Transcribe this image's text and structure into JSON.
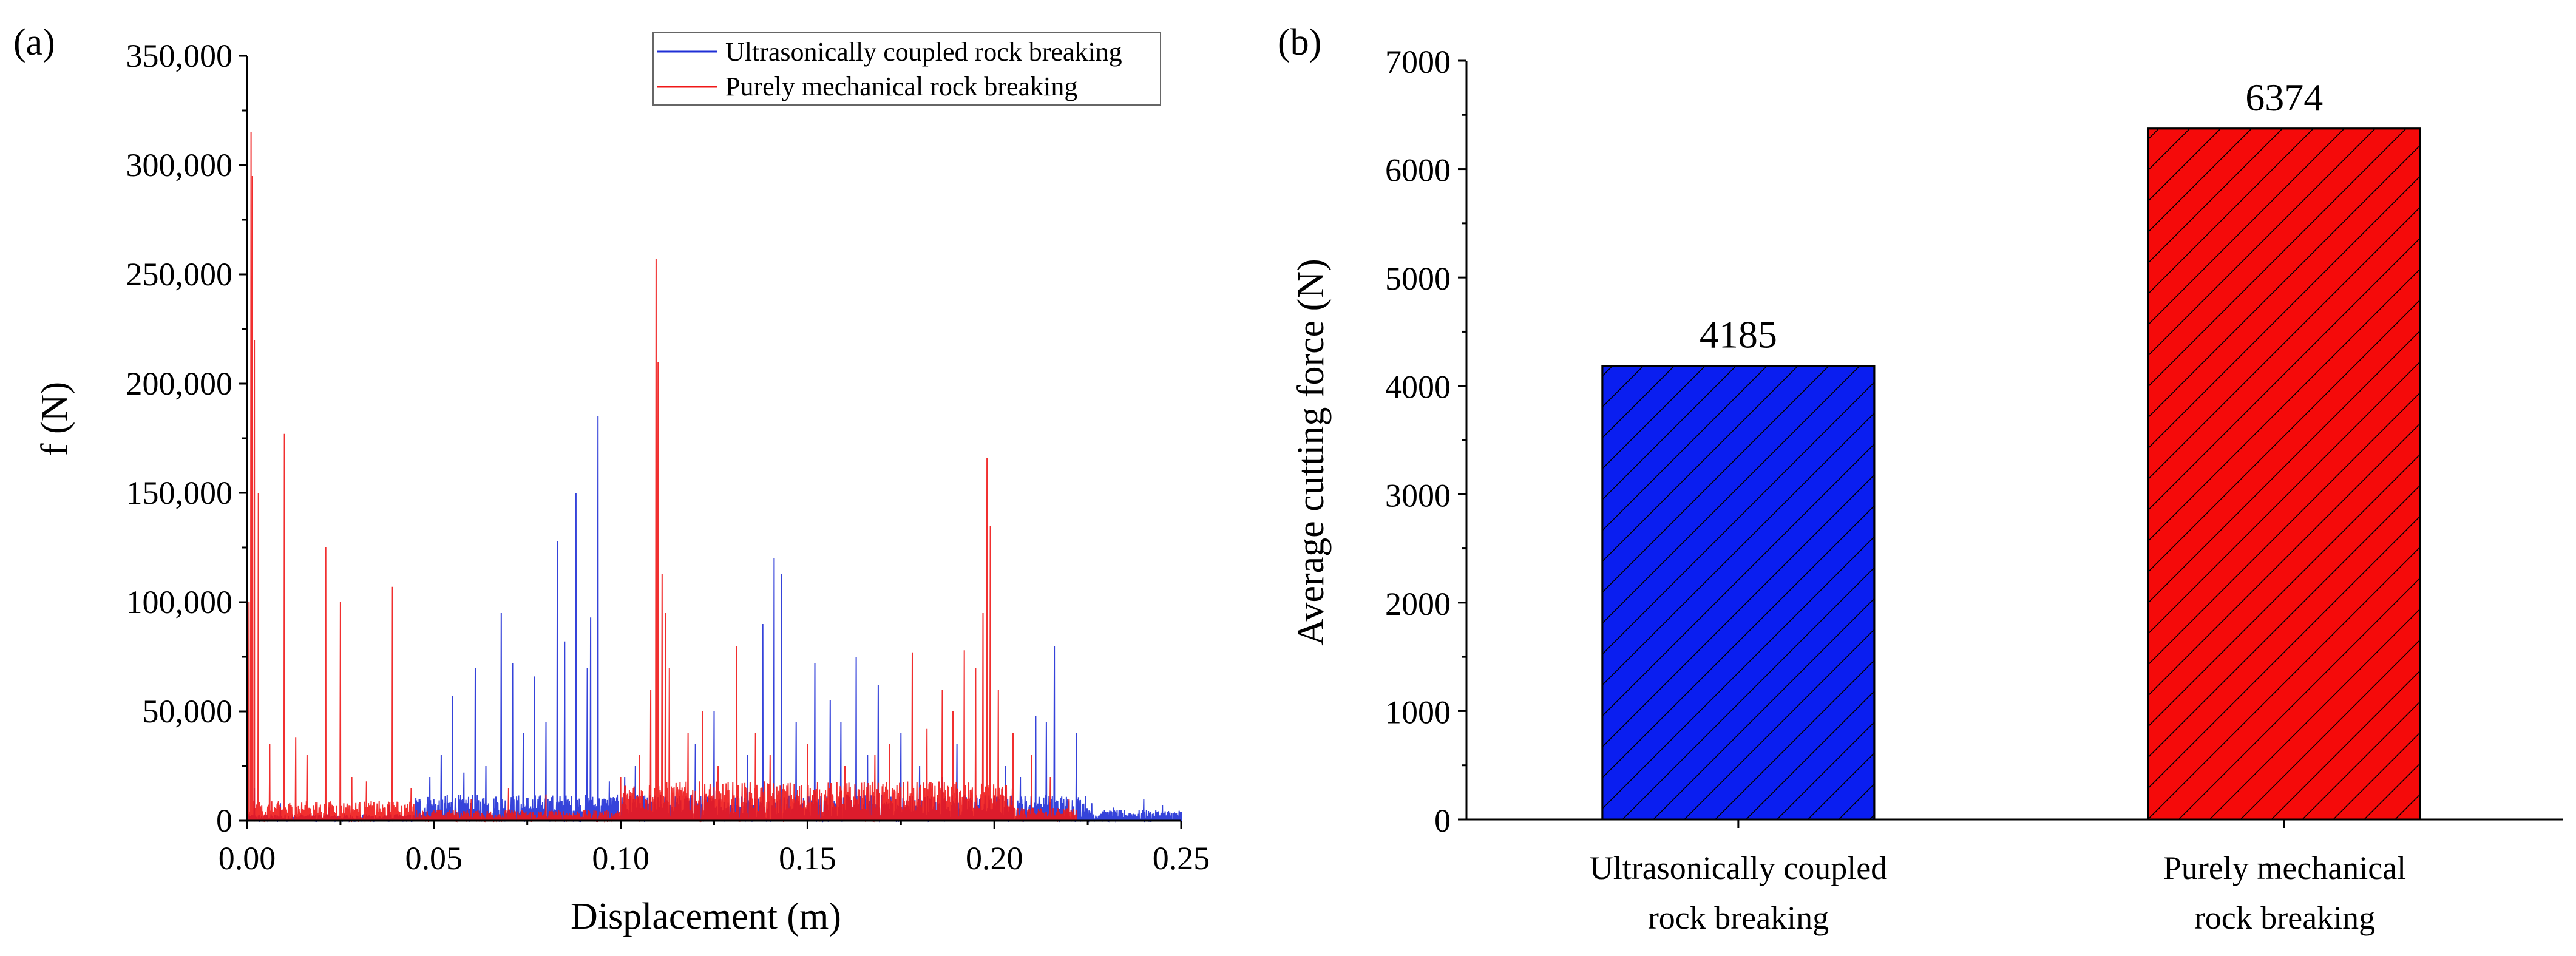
{
  "chart_data": [
    {
      "panel_label": "(a)",
      "type": "line",
      "title": "",
      "xlabel": "Displacement (m)",
      "ylabel": "f (N)",
      "xlim": [
        0.0,
        0.25
      ],
      "ylim": [
        0,
        350000
      ],
      "xticks": [
        0.0,
        0.05,
        0.1,
        0.15,
        0.2,
        0.25
      ],
      "xtick_labels": [
        "0.00",
        "0.05",
        "0.10",
        "0.15",
        "0.20",
        "0.25"
      ],
      "yticks": [
        0,
        50000,
        100000,
        150000,
        200000,
        250000,
        300000,
        350000
      ],
      "ytick_labels": [
        "0",
        "50,000",
        "100,000",
        "150,000",
        "200,000",
        "250,000",
        "300,000",
        "350,000"
      ],
      "legend_position": "top-right",
      "series": [
        {
          "name": "Ultrasonically coupled rock breaking",
          "color": "#1f2fd6",
          "peaks": [
            [
              0.002,
              15000
            ],
            [
              0.009,
              8000
            ],
            [
              0.022,
              6000
            ],
            [
              0.038,
              7000
            ],
            [
              0.049,
              20000
            ],
            [
              0.052,
              30000
            ],
            [
              0.055,
              57000
            ],
            [
              0.058,
              22000
            ],
            [
              0.061,
              70000
            ],
            [
              0.064,
              25000
            ],
            [
              0.068,
              95000
            ],
            [
              0.071,
              72000
            ],
            [
              0.074,
              40000
            ],
            [
              0.077,
              66000
            ],
            [
              0.08,
              45000
            ],
            [
              0.083,
              128000
            ],
            [
              0.085,
              82000
            ],
            [
              0.088,
              150000
            ],
            [
              0.091,
              70000
            ],
            [
              0.092,
              93000
            ],
            [
              0.094,
              185000
            ],
            [
              0.097,
              18000
            ],
            [
              0.101,
              20000
            ],
            [
              0.104,
              25000
            ],
            [
              0.12,
              35000
            ],
            [
              0.125,
              50000
            ],
            [
              0.134,
              30000
            ],
            [
              0.138,
              90000
            ],
            [
              0.141,
              120000
            ],
            [
              0.143,
              113000
            ],
            [
              0.147,
              45000
            ],
            [
              0.152,
              72000
            ],
            [
              0.156,
              55000
            ],
            [
              0.159,
              45000
            ],
            [
              0.163,
              75000
            ],
            [
              0.166,
              30000
            ],
            [
              0.169,
              62000
            ],
            [
              0.175,
              40000
            ],
            [
              0.18,
              25000
            ],
            [
              0.186,
              20000
            ],
            [
              0.19,
              35000
            ],
            [
              0.203,
              25000
            ],
            [
              0.207,
              20000
            ],
            [
              0.211,
              48000
            ],
            [
              0.214,
              45000
            ],
            [
              0.216,
              80000
            ],
            [
              0.222,
              40000
            ],
            [
              0.226,
              8000
            ],
            [
              0.232,
              6000
            ],
            [
              0.24,
              10000
            ],
            [
              0.245,
              7000
            ]
          ]
        },
        {
          "name": "Purely mechanical rock breaking",
          "color": "#f01818",
          "peaks": [
            [
              0.0005,
              100000
            ],
            [
              0.001,
              315000
            ],
            [
              0.0015,
              295000
            ],
            [
              0.002,
              220000
            ],
            [
              0.003,
              150000
            ],
            [
              0.006,
              35000
            ],
            [
              0.01,
              177000
            ],
            [
              0.013,
              38000
            ],
            [
              0.016,
              30000
            ],
            [
              0.021,
              125000
            ],
            [
              0.025,
              100000
            ],
            [
              0.028,
              20000
            ],
            [
              0.032,
              18000
            ],
            [
              0.039,
              107000
            ],
            [
              0.044,
              15000
            ],
            [
              0.06,
              10000
            ],
            [
              0.07,
              15000
            ],
            [
              0.08,
              12000
            ],
            [
              0.1,
              20000
            ],
            [
              0.105,
              30000
            ],
            [
              0.108,
              60000
            ],
            [
              0.1095,
              257000
            ],
            [
              0.11,
              210000
            ],
            [
              0.111,
              113000
            ],
            [
              0.112,
              95000
            ],
            [
              0.113,
              70000
            ],
            [
              0.118,
              40000
            ],
            [
              0.122,
              50000
            ],
            [
              0.126,
              25000
            ],
            [
              0.131,
              80000
            ],
            [
              0.136,
              40000
            ],
            [
              0.14,
              30000
            ],
            [
              0.15,
              35000
            ],
            [
              0.16,
              25000
            ],
            [
              0.168,
              30000
            ],
            [
              0.172,
              35000
            ],
            [
              0.178,
              77000
            ],
            [
              0.182,
              42000
            ],
            [
              0.186,
              60000
            ],
            [
              0.189,
              50000
            ],
            [
              0.192,
              78000
            ],
            [
              0.195,
              70000
            ],
            [
              0.197,
              95000
            ],
            [
              0.198,
              166000
            ],
            [
              0.199,
              135000
            ],
            [
              0.201,
              60000
            ],
            [
              0.205,
              40000
            ],
            [
              0.21,
              30000
            ],
            [
              0.215,
              20000
            ],
            [
              0.22,
              10000
            ]
          ]
        }
      ]
    },
    {
      "panel_label": "(b)",
      "type": "bar",
      "title": "",
      "xlabel": "",
      "ylabel": "Average cutting force  (N)",
      "ylim": [
        0,
        7000
      ],
      "yticks": [
        0,
        1000,
        2000,
        3000,
        4000,
        5000,
        6000,
        7000
      ],
      "ytick_labels": [
        "0",
        "1000",
        "2000",
        "3000",
        "4000",
        "5000",
        "6000",
        "7000"
      ],
      "categories": [
        [
          "Ultrasonically coupled",
          "rock breaking"
        ],
        [
          "Purely mechanical",
          "rock breaking"
        ]
      ],
      "values": [
        4185,
        6374
      ],
      "value_labels": [
        "4185",
        "6374"
      ],
      "colors": [
        "#0a1ef0",
        "#f50a0a"
      ],
      "hatch": [
        "diagonal",
        "diagonal"
      ]
    }
  ]
}
